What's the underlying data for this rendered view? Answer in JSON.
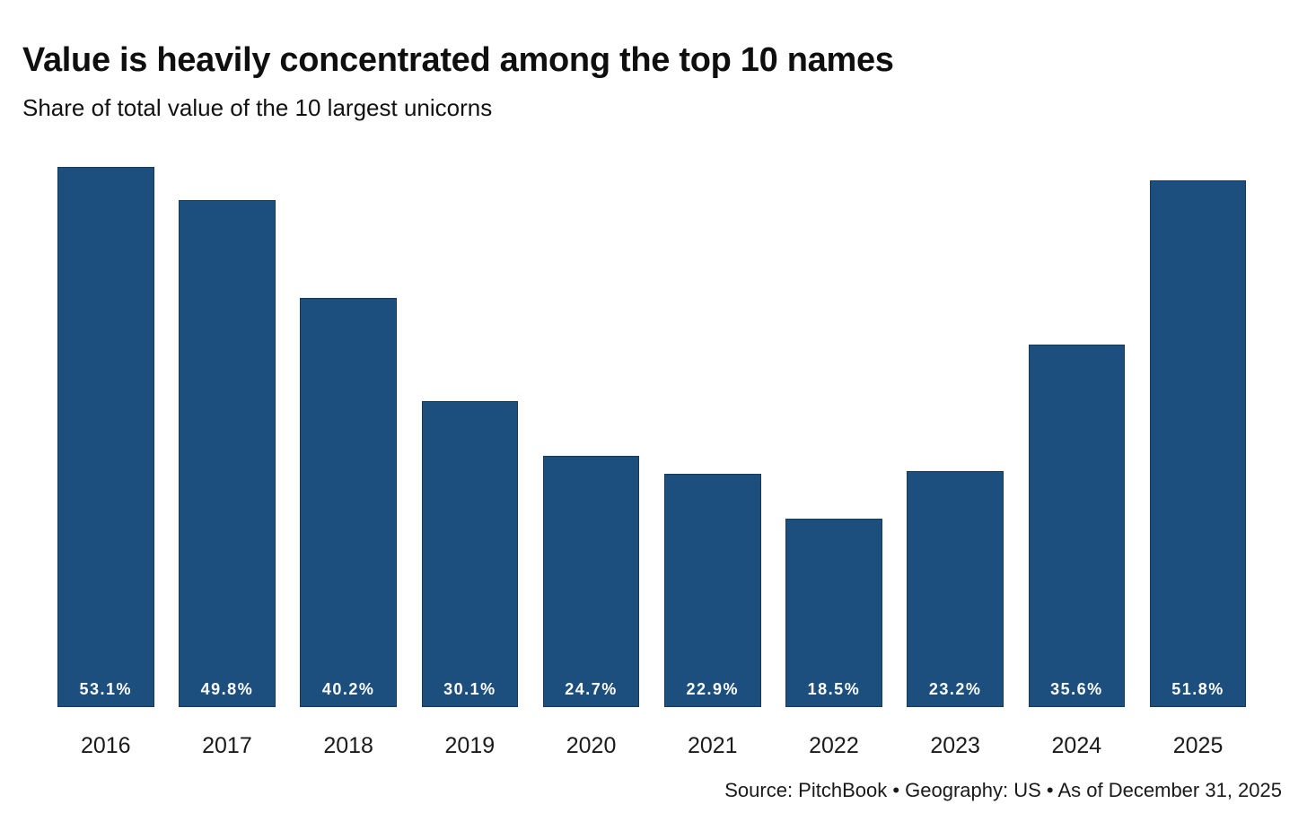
{
  "chart_data": {
    "type": "bar",
    "title": "Value is heavily concentrated among the top 10 names",
    "subtitle": "Share of total value of the 10 largest unicorns",
    "categories": [
      "2016",
      "2017",
      "2018",
      "2019",
      "2020",
      "2021",
      "2022",
      "2023",
      "2024",
      "2025"
    ],
    "values": [
      53.1,
      49.8,
      40.2,
      30.1,
      24.7,
      22.9,
      18.5,
      23.2,
      35.6,
      51.8
    ],
    "value_labels": [
      "53.1%",
      "49.8%",
      "40.2%",
      "30.1%",
      "24.7%",
      "22.9%",
      "18.5%",
      "23.2%",
      "35.6%",
      "51.8%"
    ],
    "unit": "%",
    "xlabel": "",
    "ylabel": "",
    "ylim": [
      0,
      56
    ],
    "grid": false,
    "legend": false,
    "value_labels_position": "inside-bottom",
    "bar_color": "#1d4f7e",
    "bar_border_color": "#16395c",
    "bar_label_color": "#ffffff",
    "axis_label_color": "#1a1a1a",
    "background_color": "#ffffff",
    "source": "Source: PitchBook • Geography: US • As of December 31, 2025"
  }
}
